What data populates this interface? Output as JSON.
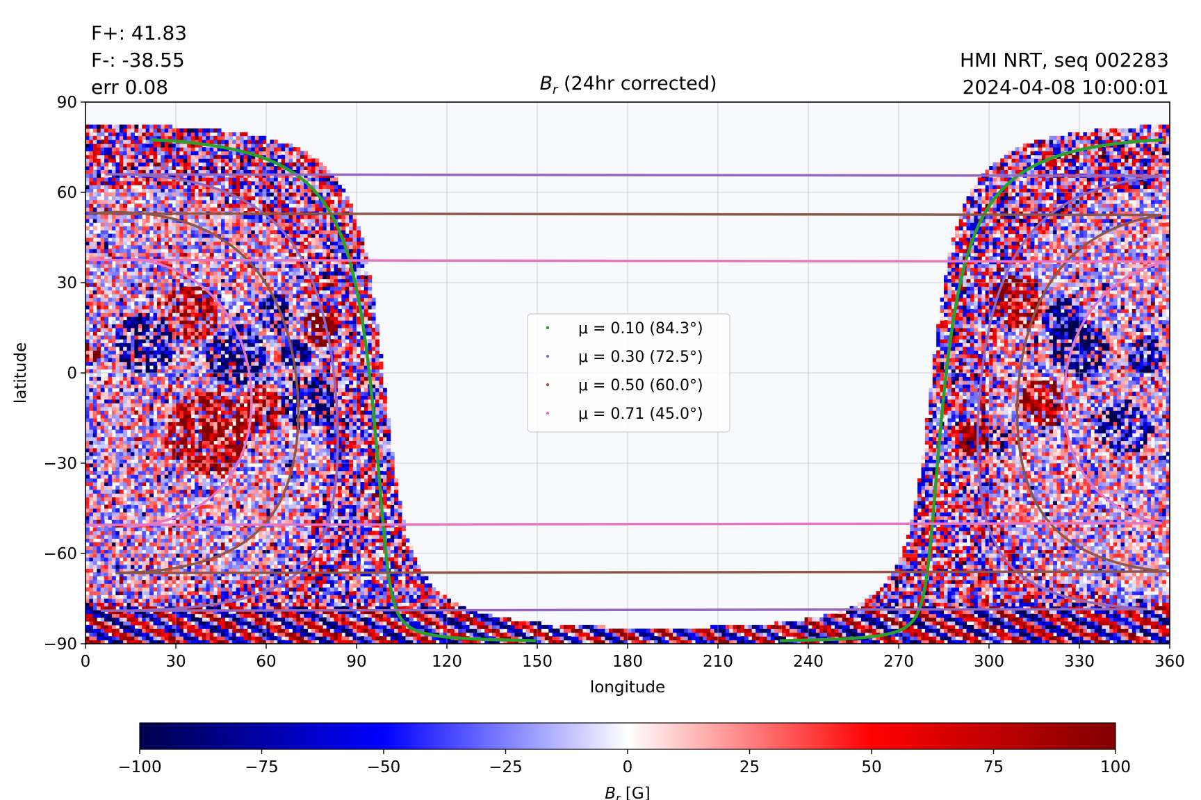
{
  "annotations": {
    "flux_pos": "F+: 41.83",
    "flux_neg": "F-: -38.55",
    "err": "err 0.08",
    "instrument": "HMI NRT, seq 002283",
    "timestamp": "2024-04-08 10:00:01"
  },
  "chart_data": {
    "type": "heatmap",
    "title": {
      "symbol": "B",
      "subscript": "r",
      "text": " (24hr corrected)"
    },
    "xlabel": "longitude",
    "ylabel": "latitude",
    "xlim": [
      0,
      360
    ],
    "ylim": [
      -90,
      90
    ],
    "xticks": [
      0,
      30,
      60,
      90,
      120,
      150,
      180,
      210,
      240,
      270,
      300,
      330,
      360
    ],
    "yticks": [
      -90,
      -60,
      -30,
      0,
      30,
      60,
      90
    ],
    "grid": true,
    "observed_longitude_ranges": [
      [
        0,
        101
      ],
      [
        279,
        360
      ]
    ],
    "legend": {
      "placement": "center",
      "entries": [
        {
          "label": "μ = 0.10 (84.3°)",
          "color": "#2ca02c",
          "mu": 0.1,
          "angle_deg": 84.3
        },
        {
          "label": "μ = 0.30 (72.5°)",
          "color": "#9467bd",
          "mu": 0.3,
          "angle_deg": 72.5
        },
        {
          "label": "μ = 0.50 (60.0°)",
          "color": "#8c564b",
          "mu": 0.5,
          "angle_deg": 60.0
        },
        {
          "label": "μ = 0.71 (45.0°)",
          "color": "#e377c2",
          "mu": 0.71,
          "angle_deg": 45.0
        }
      ]
    },
    "colorbar": {
      "colormap": "seismic",
      "min": -100,
      "max": 100,
      "ticks": [
        -100,
        -75,
        -50,
        -25,
        0,
        25,
        50,
        75,
        100
      ],
      "tick_labels": [
        "−100",
        "−75",
        "−50",
        "−25",
        "0",
        "25",
        "50",
        "75",
        "100"
      ],
      "label": {
        "symbol": "B",
        "subscript": "r",
        "unit": " [G]"
      }
    }
  }
}
